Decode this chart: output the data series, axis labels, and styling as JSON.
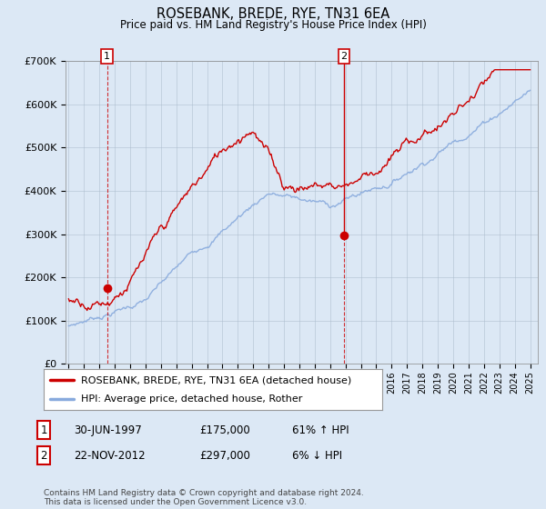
{
  "title": "ROSEBANK, BREDE, RYE, TN31 6EA",
  "subtitle": "Price paid vs. HM Land Registry's House Price Index (HPI)",
  "ylim": [
    0,
    700000
  ],
  "yticks": [
    0,
    100000,
    200000,
    300000,
    400000,
    500000,
    600000,
    700000
  ],
  "ytick_labels": [
    "£0",
    "£100K",
    "£200K",
    "£300K",
    "£400K",
    "£500K",
    "£600K",
    "£700K"
  ],
  "line1_color": "#cc0000",
  "line2_color": "#88aadd",
  "point1_year": 1997.5,
  "point1_value": 175000,
  "point2_year": 2012.9,
  "point2_value": 297000,
  "annotation1_label": "1",
  "annotation2_label": "2",
  "legend_line1": "ROSEBANK, BREDE, RYE, TN31 6EA (detached house)",
  "legend_line2": "HPI: Average price, detached house, Rother",
  "table_row1_num": "1",
  "table_row1_date": "30-JUN-1997",
  "table_row1_price": "£175,000",
  "table_row1_hpi": "61% ↑ HPI",
  "table_row2_num": "2",
  "table_row2_date": "22-NOV-2012",
  "table_row2_price": "£297,000",
  "table_row2_hpi": "6% ↓ HPI",
  "footnote": "Contains HM Land Registry data © Crown copyright and database right 2024.\nThis data is licensed under the Open Government Licence v3.0.",
  "background_color": "#dce8f5",
  "plot_bg_color": "#dce8f5",
  "grid_color": "#aabbcc"
}
